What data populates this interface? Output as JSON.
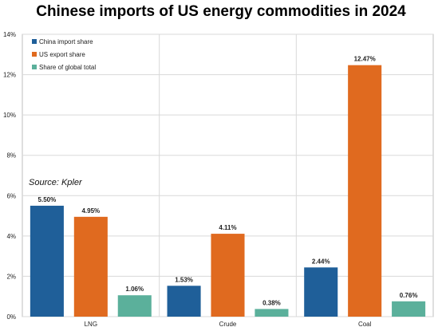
{
  "chart_data": {
    "type": "bar",
    "title": "Chinese imports of US energy commodities in 2024",
    "source": "Source: Kpler",
    "categories": [
      "LNG",
      "Crude",
      "Coal"
    ],
    "series": [
      {
        "name": "China import share",
        "color": "#1f5f99",
        "values": [
          5.5,
          1.53,
          2.44
        ],
        "labels": [
          "5.50%",
          "1.53%",
          "2.44%"
        ]
      },
      {
        "name": "US export share",
        "color": "#e06a1f",
        "values": [
          4.95,
          4.11,
          12.47
        ],
        "labels": [
          "4.95%",
          "4.11%",
          "12.47%"
        ]
      },
      {
        "name": "Share of global total",
        "color": "#5bb09b",
        "values": [
          1.06,
          0.38,
          0.76
        ],
        "labels": [
          "1.06%",
          "0.38%",
          "0.76%"
        ]
      }
    ],
    "yticks": [
      "0%",
      "2%",
      "4%",
      "6%",
      "8%",
      "10%",
      "12%",
      "14%"
    ],
    "ylim": [
      0,
      14
    ],
    "grid": true,
    "legend_position": "top-left"
  }
}
